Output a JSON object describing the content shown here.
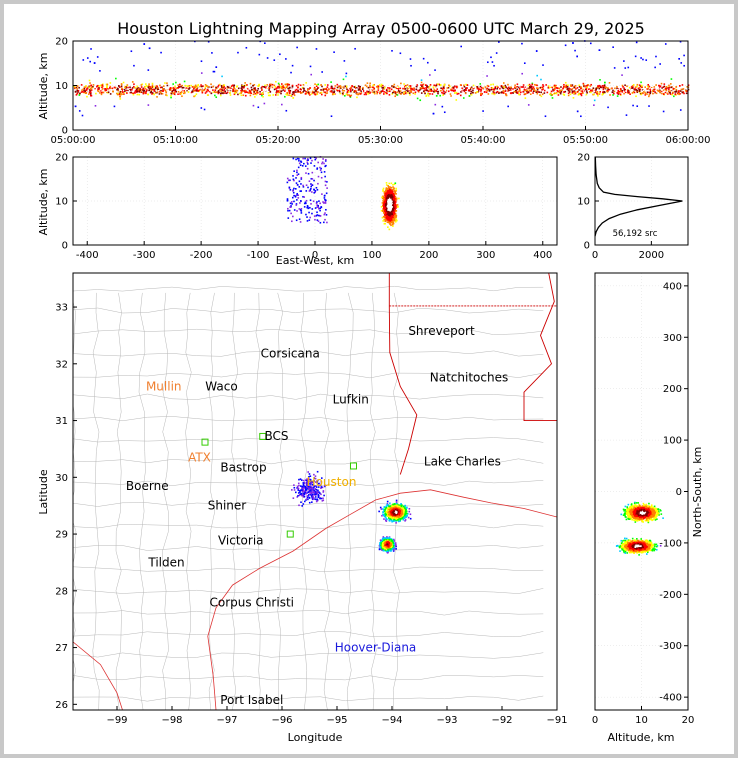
{
  "colors": {
    "background_outer": "#c8c8c8",
    "panel_bg": "#ffffff",
    "border": "#d0d0d0",
    "axis": "#000000",
    "grid": "#dddddd",
    "county_lines": "#b8b8b8",
    "state_lines": "#cc0000",
    "coast_lines": "#dd3333",
    "label_blue": "#1a1adc",
    "label_orange": "#f08030",
    "label_green": "#33cc00",
    "density_ramp": [
      "#0000ff",
      "#8a2be2",
      "#00c8ff",
      "#00ff00",
      "#ffff00",
      "#ff8000",
      "#ff0000",
      "#800000",
      "#ffffff"
    ]
  },
  "chart_data": [
    {
      "name": "altitude-time",
      "type": "heatmap",
      "title": "Houston Lightning Mapping Array 0500-0600 UTC March 29, 2025",
      "xlabel": "",
      "ylabel": "Altitude, km",
      "xlim": [
        "05:00:00",
        "06:00:00"
      ],
      "ylim": [
        0,
        20
      ],
      "x_ticks": [
        "05:00:00",
        "05:10:00",
        "05:20:00",
        "05:30:00",
        "05:40:00",
        "05:50:00",
        "06:00:00"
      ],
      "y_ticks": [
        0,
        10,
        20
      ],
      "series": [
        {
          "altitude_peak_km": 9,
          "altitude_range_km": [
            2,
            20
          ]
        }
      ]
    },
    {
      "name": "altitude-east-west",
      "type": "heatmap",
      "xlabel": "East-West, km",
      "ylabel": "Altitude, km",
      "xlim": [
        -425,
        425
      ],
      "ylim": [
        0,
        20
      ],
      "x_ticks": [
        -400,
        -300,
        -200,
        -100,
        0,
        100,
        200,
        300,
        400
      ],
      "y_ticks": [
        0,
        10,
        20
      ],
      "clusters": [
        {
          "x_range": [
            100,
            160
          ],
          "y_range": [
            0,
            20
          ],
          "peak_x": 130,
          "peak_y": 9
        },
        {
          "x_range": [
            -50,
            20
          ],
          "y_range": [
            5,
            20
          ],
          "sparse": true
        }
      ]
    },
    {
      "name": "altitude-histogram",
      "type": "line",
      "xlim": [
        0,
        3300
      ],
      "ylim": [
        0,
        20
      ],
      "x_ticks": [
        0,
        2000
      ],
      "y_ticks": [
        0,
        10,
        20
      ],
      "annotation": "56,192 src",
      "x": [
        0,
        40,
        120,
        260,
        500,
        900,
        1500,
        2300,
        3100,
        2400,
        1500,
        700,
        300,
        150,
        80,
        40,
        20,
        10
      ],
      "y": [
        2,
        3,
        4,
        5,
        6,
        7,
        8,
        9,
        10,
        10.5,
        11,
        11.5,
        12,
        13,
        14,
        16,
        18,
        20
      ]
    },
    {
      "name": "plan-view-map",
      "type": "scatter",
      "xlabel": "Longitude",
      "ylabel": "Latitude",
      "xlim": [
        -99.8,
        -91
      ],
      "ylim": [
        25.9,
        33.6
      ],
      "x_ticks": [
        -99,
        -98,
        -97,
        -96,
        -95,
        -94,
        -93,
        -92,
        -91
      ],
      "y_ticks": [
        26,
        27,
        28,
        29,
        30,
        31,
        32,
        33
      ],
      "cities": [
        {
          "name": "Shreveport",
          "lon": -93.1,
          "lat": 32.58,
          "color": "#000000"
        },
        {
          "name": "Corsicana",
          "lon": -95.85,
          "lat": 32.18,
          "color": "#000000"
        },
        {
          "name": "Natchitoches",
          "lon": -92.6,
          "lat": 31.76,
          "color": "#000000"
        },
        {
          "name": "Mullin",
          "lon": -98.15,
          "lat": 31.6,
          "color": "#f08030"
        },
        {
          "name": "Waco",
          "lon": -97.1,
          "lat": 31.6,
          "color": "#000000"
        },
        {
          "name": "Lufkin",
          "lon": -94.75,
          "lat": 31.37,
          "color": "#000000"
        },
        {
          "name": "BCS",
          "lon": -96.1,
          "lat": 30.73,
          "color": "#000000"
        },
        {
          "name": "ATX",
          "lon": -97.5,
          "lat": 30.35,
          "color": "#f08030"
        },
        {
          "name": "Lake Charles",
          "lon": -92.72,
          "lat": 30.28,
          "color": "#000000"
        },
        {
          "name": "Bastrop",
          "lon": -96.7,
          "lat": 30.17,
          "color": "#000000"
        },
        {
          "name": "Houston",
          "lon": -95.1,
          "lat": 29.92,
          "color": "#f0b000"
        },
        {
          "name": "Boerne",
          "lon": -98.45,
          "lat": 29.85,
          "color": "#000000"
        },
        {
          "name": "Shiner",
          "lon": -97.0,
          "lat": 29.5,
          "color": "#000000"
        },
        {
          "name": "Victoria",
          "lon": -96.75,
          "lat": 28.89,
          "color": "#000000"
        },
        {
          "name": "Tilden",
          "lon": -98.1,
          "lat": 28.5,
          "color": "#000000"
        },
        {
          "name": "Corpus Christi",
          "lon": -96.55,
          "lat": 27.79,
          "color": "#000000"
        },
        {
          "name": "Hoover-Diana",
          "lon": -94.3,
          "lat": 27.0,
          "color": "#1a1adc"
        },
        {
          "name": "Port Isabel",
          "lon": -96.55,
          "lat": 26.08,
          "color": "#000000"
        }
      ],
      "clusters": [
        {
          "lon": -93.95,
          "lat": 29.4,
          "spread_lon": 0.25,
          "spread_lat": 0.18,
          "strength": 1.0
        },
        {
          "lon": -94.1,
          "lat": 28.83,
          "spread_lon": 0.15,
          "spread_lat": 0.14,
          "strength": 0.9
        },
        {
          "lon": -95.5,
          "lat": 29.8,
          "spread_lon": 0.35,
          "spread_lat": 0.3,
          "strength": 0.15,
          "sparse": true
        }
      ]
    },
    {
      "name": "north-south-altitude",
      "type": "heatmap",
      "xlabel": "Altitude, km",
      "ylabel": "North-South, km",
      "xlim": [
        0,
        20
      ],
      "ylim": [
        -425,
        425
      ],
      "x_ticks": [
        0,
        10,
        20
      ],
      "y_ticks": [
        -400,
        -300,
        -200,
        -100,
        0,
        100,
        200,
        300,
        400
      ],
      "clusters": [
        {
          "ns_km": -40,
          "alt_km": 10,
          "spread_ns": 18,
          "spread_alt": 3.5
        },
        {
          "ns_km": -105,
          "alt_km": 9,
          "spread_ns": 14,
          "spread_alt": 3.5
        }
      ]
    }
  ]
}
